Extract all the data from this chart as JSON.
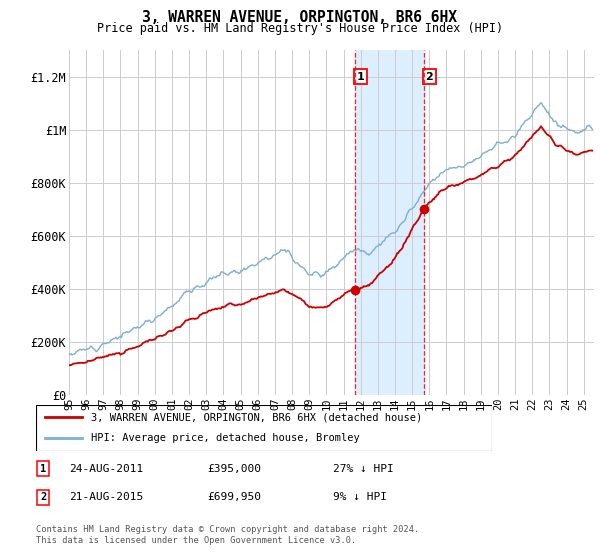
{
  "title": "3, WARREN AVENUE, ORPINGTON, BR6 6HX",
  "subtitle": "Price paid vs. HM Land Registry's House Price Index (HPI)",
  "sale1_label": "24-AUG-2011",
  "sale1_price": 395000,
  "sale1_price_str": "£395,000",
  "sale1_hpi_pct": "27% ↓ HPI",
  "sale2_label": "21-AUG-2015",
  "sale2_price": 699950,
  "sale2_price_str": "£699,950",
  "sale2_hpi_pct": "9% ↓ HPI",
  "legend_red": "3, WARREN AVENUE, ORPINGTON, BR6 6HX (detached house)",
  "legend_blue": "HPI: Average price, detached house, Bromley",
  "footer": "Contains HM Land Registry data © Crown copyright and database right 2024.\nThis data is licensed under the Open Government Licence v3.0.",
  "red_color": "#cc0000",
  "blue_color": "#7bafd4",
  "shade_color": "#ddeeff",
  "ylim_max": 1300000,
  "ylabel_ticks": [
    0,
    200000,
    400000,
    600000,
    800000,
    1000000,
    1200000
  ],
  "ylabel_labels": [
    "£0",
    "£200K",
    "£400K",
    "£600K",
    "£800K",
    "£1M",
    "£1.2M"
  ]
}
